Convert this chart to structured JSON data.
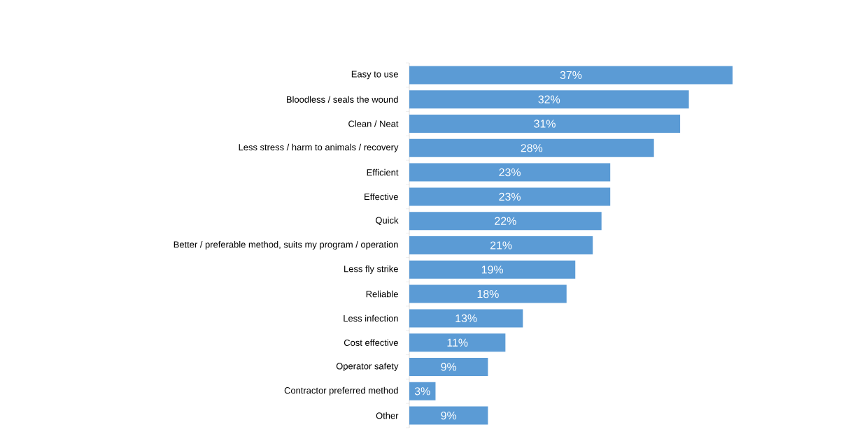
{
  "chart_data": {
    "type": "bar",
    "orientation": "horizontal",
    "color": "#5b9bd5",
    "categories": [
      "Easy to use",
      "Bloodless / seals the wound",
      "Clean / Neat",
      "Less stress / harm to animals / recovery",
      "Efficient",
      "Effective",
      "Quick",
      "Better / preferable method, suits my program / operation",
      "Less fly strike",
      "Reliable",
      "Less infection",
      "Cost effective",
      "Operator safety",
      "Contractor preferred method",
      "Other"
    ],
    "values": [
      37,
      32,
      31,
      28,
      23,
      23,
      22,
      21,
      19,
      18,
      13,
      11,
      9,
      3,
      9
    ],
    "value_labels": [
      "37%",
      "32%",
      "31%",
      "28%",
      "23%",
      "23%",
      "22%",
      "21%",
      "19%",
      "18%",
      "13%",
      "11%",
      "9%",
      "3%",
      "9%"
    ]
  }
}
